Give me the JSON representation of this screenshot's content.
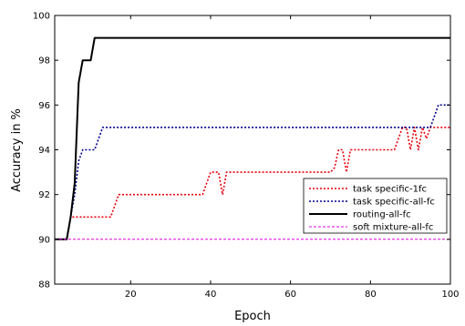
{
  "chart_data": {
    "type": "line",
    "xlabel": "Epoch",
    "ylabel": "Accuracy in %",
    "xlim": [
      1,
      100
    ],
    "ylim": [
      88,
      100
    ],
    "xticks": [
      20,
      40,
      60,
      80,
      100
    ],
    "xtick_labels": [
      "20",
      "40",
      "60",
      "80",
      "100"
    ],
    "yticks": [
      88,
      90,
      92,
      94,
      96,
      98,
      100
    ],
    "ytick_labels": [
      "88",
      "90",
      "92",
      "94",
      "96",
      "98",
      "100"
    ],
    "grid": false,
    "legend_position": "bottom-right",
    "series": [
      {
        "name": "task specific-1fc",
        "color": "#e8000b",
        "style": "dotted",
        "x": [
          1,
          4,
          5,
          6,
          7,
          15,
          16,
          17,
          20,
          38,
          39,
          40,
          42,
          43,
          44,
          70,
          71,
          72,
          73,
          74,
          75,
          76,
          86,
          87,
          88,
          89,
          90,
          91,
          92,
          93,
          94,
          95,
          100
        ],
        "y": [
          90,
          90,
          91,
          91,
          91,
          91,
          91.5,
          92,
          92,
          92,
          92.5,
          93,
          93,
          92,
          93,
          93,
          93.2,
          94,
          94,
          93,
          94,
          94,
          94,
          94.5,
          95,
          95,
          94,
          95,
          94,
          95,
          94.5,
          95,
          95
        ]
      },
      {
        "name": "task specific-all-fc",
        "color": "#00008b",
        "style": "dotted",
        "x": [
          1,
          4,
          5,
          6,
          7,
          8,
          9,
          11,
          12,
          13,
          95,
          96,
          97,
          100
        ],
        "y": [
          90,
          90,
          91,
          92,
          93.5,
          94,
          94,
          94,
          94.5,
          95,
          95,
          95.5,
          96,
          96
        ]
      },
      {
        "name": "routing-all-fc",
        "color": "#000000",
        "style": "solid",
        "x": [
          1,
          4,
          5,
          6,
          7,
          8,
          10,
          11,
          100
        ],
        "y": [
          90,
          90,
          91,
          92.5,
          97,
          98,
          98,
          99,
          99
        ]
      },
      {
        "name": "soft mixture-all-fc",
        "color": "#e000e0",
        "style": "dashed",
        "x": [
          1,
          100
        ],
        "y": [
          90,
          90
        ]
      }
    ]
  }
}
